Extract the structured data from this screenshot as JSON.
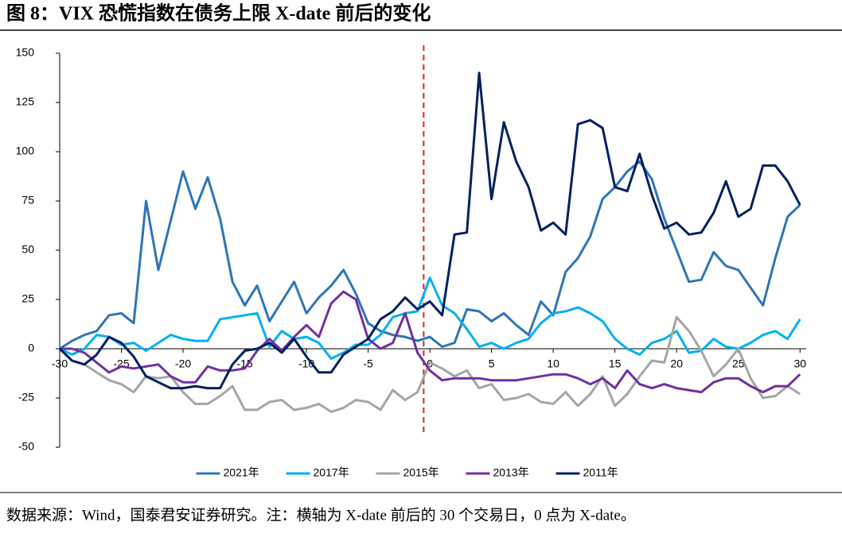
{
  "chart_data": {
    "type": "line",
    "title": "图 8：VIX 恐慌指数在债务上限 X-date 前后的变化",
    "note": "数据来源：Wind，国泰君安证券研究。注：横轴为 X-date 前后的 30 个交易日，0 点为 X-date。",
    "x": [
      -30,
      -29,
      -28,
      -27,
      -26,
      -25,
      -24,
      -23,
      -22,
      -21,
      -20,
      -19,
      -18,
      -17,
      -16,
      -15,
      -14,
      -13,
      -12,
      -11,
      -10,
      -9,
      -8,
      -7,
      -6,
      -5,
      -4,
      -3,
      -2,
      -1,
      0,
      1,
      2,
      3,
      4,
      5,
      6,
      7,
      8,
      9,
      10,
      11,
      12,
      13,
      14,
      15,
      16,
      17,
      18,
      19,
      20,
      21,
      22,
      23,
      24,
      25,
      26,
      27,
      28,
      29,
      30
    ],
    "series": [
      {
        "name": "2021年",
        "color": "#2e75b6",
        "values": [
          0,
          4,
          7,
          9,
          17,
          18,
          13,
          75,
          40,
          65,
          90,
          71,
          87,
          66,
          34,
          22,
          32,
          14,
          24,
          34,
          18,
          26,
          32,
          40,
          28,
          13,
          9,
          7,
          6,
          4,
          6,
          1,
          3,
          20,
          19,
          14,
          18,
          12,
          7,
          24,
          17,
          39,
          46,
          57,
          76,
          82,
          90,
          95,
          86,
          66,
          50,
          34,
          35,
          49,
          42,
          40,
          31,
          22,
          46,
          67,
          73
        ]
      },
      {
        "name": "2017年",
        "color": "#00b0f0",
        "values": [
          0,
          -3,
          0,
          7,
          6,
          2,
          3,
          -1,
          3,
          7,
          5,
          4,
          4,
          15,
          16,
          17,
          18,
          1,
          9,
          5,
          6,
          3,
          -5,
          -2,
          2,
          2,
          7,
          16,
          18,
          19,
          36,
          22,
          18,
          10,
          1,
          3,
          0,
          3,
          5,
          13,
          18,
          19,
          21,
          18,
          14,
          5,
          0,
          -3,
          3,
          5,
          9,
          -2,
          -1,
          5,
          1,
          0,
          3,
          7,
          9,
          5,
          15
        ]
      },
      {
        "name": "2015年",
        "color": "#a5a5a5",
        "values": [
          0,
          -6,
          -8,
          -12,
          -16,
          -18,
          -22,
          -14,
          -15,
          -14,
          -22,
          -28,
          -28,
          -24,
          -19,
          -31,
          -31,
          -27,
          -26,
          -31,
          -30,
          -28,
          -32,
          -30,
          -26,
          -27,
          -31,
          -21,
          -26,
          -22,
          -7,
          -10,
          -14,
          -11,
          -20,
          -18,
          -26,
          -25,
          -23,
          -27,
          -28,
          -22,
          -29,
          -23,
          -14,
          -29,
          -23,
          -14,
          -6,
          -7,
          16,
          9,
          -1,
          -14,
          -8,
          0,
          -15,
          -25,
          -24,
          -19,
          -23
        ]
      },
      {
        "name": "2013年",
        "color": "#7030a0",
        "values": [
          0,
          0,
          -2,
          -7,
          -12,
          -9,
          -10,
          -9,
          -8,
          -14,
          -17,
          -17,
          -9,
          -11,
          -11,
          -10,
          -1,
          5,
          -1,
          6,
          12,
          6,
          23,
          29,
          25,
          5,
          0,
          3,
          18,
          -2,
          -11,
          -16,
          -15,
          -15,
          -15,
          -16,
          -16,
          -16,
          -15,
          -14,
          -13,
          -13,
          -15,
          -18,
          -15,
          -20,
          -11,
          -18,
          -20,
          -18,
          -20,
          -21,
          -22,
          -17,
          -15,
          -15,
          -19,
          -22,
          -19,
          -19,
          -13
        ]
      },
      {
        "name": "2011年",
        "color": "#002060",
        "values": [
          0,
          -6,
          -8,
          -3,
          6,
          3,
          -4,
          -14,
          -17,
          -20,
          -20,
          -19,
          -20,
          -20,
          -8,
          -1,
          0,
          3,
          -2,
          5,
          -4,
          -12,
          -12,
          -3,
          1,
          5,
          15,
          19,
          26,
          20,
          24,
          17,
          58,
          59,
          140,
          76,
          115,
          95,
          82,
          60,
          64,
          58,
          114,
          116,
          112,
          82,
          80,
          99,
          78,
          61,
          64,
          58,
          59,
          69,
          85,
          67,
          71,
          93,
          93,
          85,
          73
        ]
      }
    ],
    "xlim": [
      -30,
      30.5
    ],
    "xticks": [
      -30,
      -25,
      -20,
      -15,
      -10,
      -5,
      0,
      5,
      10,
      15,
      20,
      25,
      30
    ],
    "ylim": [
      -50,
      150
    ],
    "yticks": [
      -50,
      -25,
      0,
      25,
      50,
      75,
      100,
      125,
      150
    ],
    "vline": -0.5,
    "vline_color": "#e02020",
    "legend": "bottom"
  }
}
